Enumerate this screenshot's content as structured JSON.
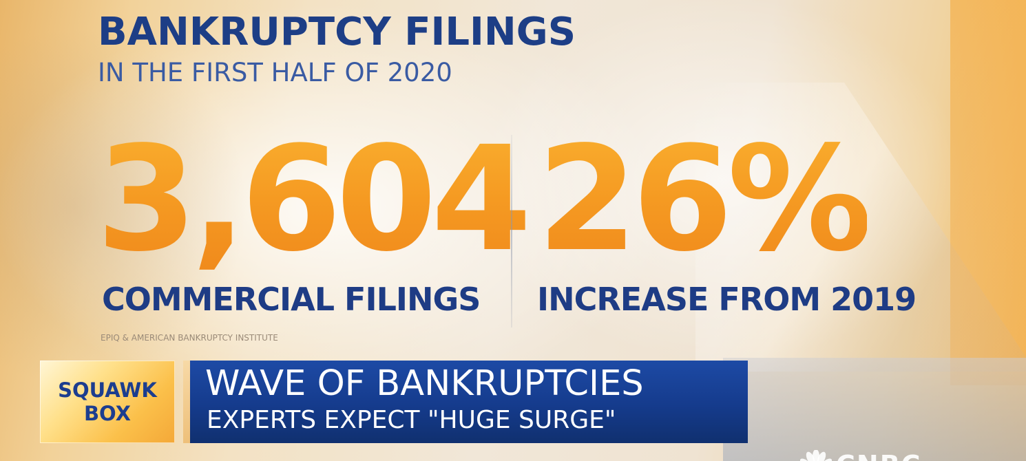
{
  "graphic": {
    "title": "BANKRUPTCY FILINGS",
    "subtitle": "IN THE FIRST HALF OF 2020",
    "stats": [
      {
        "value": "3,604",
        "label": "COMMERCIAL FILINGS"
      },
      {
        "value": "26%",
        "label": "INCREASE FROM 2019"
      }
    ],
    "source": "EPIQ & AMERICAN BANKRUPTCY INSTITUTE"
  },
  "lower_third": {
    "show_logo": {
      "line1": "SQUAWK",
      "line2": "BOX"
    },
    "headline": "WAVE OF BANKRUPTCIES",
    "subheadline": "EXPERTS EXPECT \"HUGE SURGE\""
  },
  "network": {
    "logo_text": "CNBC",
    "icon": "peacock-icon"
  },
  "colors": {
    "title_blue": "#1d3e86",
    "stat_orange": "#f39a23",
    "banner_blue": "#153b8c",
    "logo_yellow": "#ffe08a"
  }
}
